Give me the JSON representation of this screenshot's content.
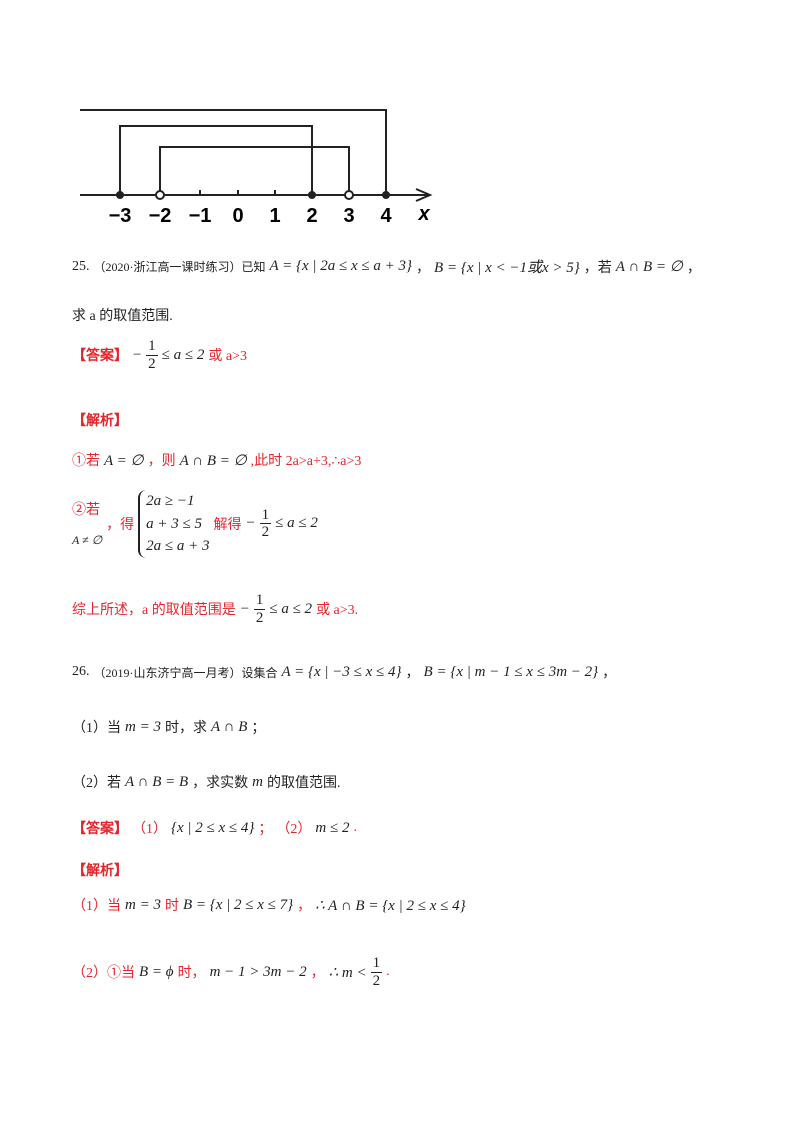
{
  "figure": {
    "labels": [
      "−3",
      "−2",
      "−1",
      "0",
      "1",
      "2",
      "3",
      "4"
    ],
    "axis_label": "x"
  },
  "q25": {
    "number": "25.",
    "source": "（2020·浙江高一课时练习）已知",
    "set_a": "A = {x | 2a ≤ x ≤ a + 3}",
    "set_b": "B = {x | x < −1或x > 5}",
    "cond_pre": "，若",
    "cond": "A ∩ B = ∅",
    "cond_post": "，",
    "ask": "求 a 的取值范围.",
    "answer": {
      "tag": "【答案】",
      "sign": "−",
      "num": "1",
      "den": "2",
      "rest": "≤ a ≤ 2",
      "tail": "或 a>3"
    },
    "analysis": {
      "tag": "【解析】",
      "case1": {
        "prefix": "①若",
        "cond": "A = ∅",
        "then": "，则",
        "result": "A ∩ B = ∅",
        "tail": ",此时 2a>a+3,∴a>3"
      },
      "case2": {
        "prefix": "②若",
        "cond": "A ≠ ∅",
        "get": "，得",
        "system": [
          "2a ≥ −1",
          "a + 3 ≤ 5",
          "2a ≤ a + 3"
        ],
        "solve": "解得",
        "sign": "−",
        "num": "1",
        "den": "2",
        "rest": "≤ a ≤ 2"
      },
      "summary": {
        "text": "综上所述，a 的取值范围是",
        "sign": "−",
        "num": "1",
        "den": "2",
        "rest": "≤ a ≤ 2",
        "tail": "或 a>3."
      }
    }
  },
  "q26": {
    "number": "26.",
    "source": "（2019·山东济宁高一月考）设集合",
    "set_a": "A = {x | −3 ≤ x ≤ 4}",
    "sep": "，",
    "set_b": "B = {x | m − 1 ≤ x ≤ 3m − 2}",
    "end": "，",
    "part1": {
      "label": "（1）当",
      "cond": "m = 3",
      "mid": "时，求",
      "target": "A ∩ B",
      "end": "；"
    },
    "part2": {
      "label": "（2）若",
      "cond": "A ∩ B = B",
      "mid": "，求实数",
      "var": "m",
      "end": "的取值范围."
    },
    "answer": {
      "tag": "【答案】",
      "p1": "（1）",
      "a1": "{x | 2 ≤ x ≤ 4}",
      "sep": "；",
      "p2": "（2）",
      "a2": "m ≤ 2",
      "end": "."
    },
    "analysis": {
      "tag": "【解析】",
      "line1": {
        "label": "（1）当",
        "cond": "m = 3",
        "mid": "时",
        "b": "B = {x | 2 ≤ x ≤ 7}",
        "sep": "，",
        "result": "∴ A ∩ B = {x | 2 ≤ x ≤ 4}"
      },
      "line2": {
        "label": "（2）①当",
        "cond": "B = ϕ",
        "mid": "时，",
        "ineq": "m − 1 > 3m − 2",
        "sep": "，",
        "res_pre": "∴ m <",
        "num": "1",
        "den": "2",
        "end": "."
      }
    }
  }
}
